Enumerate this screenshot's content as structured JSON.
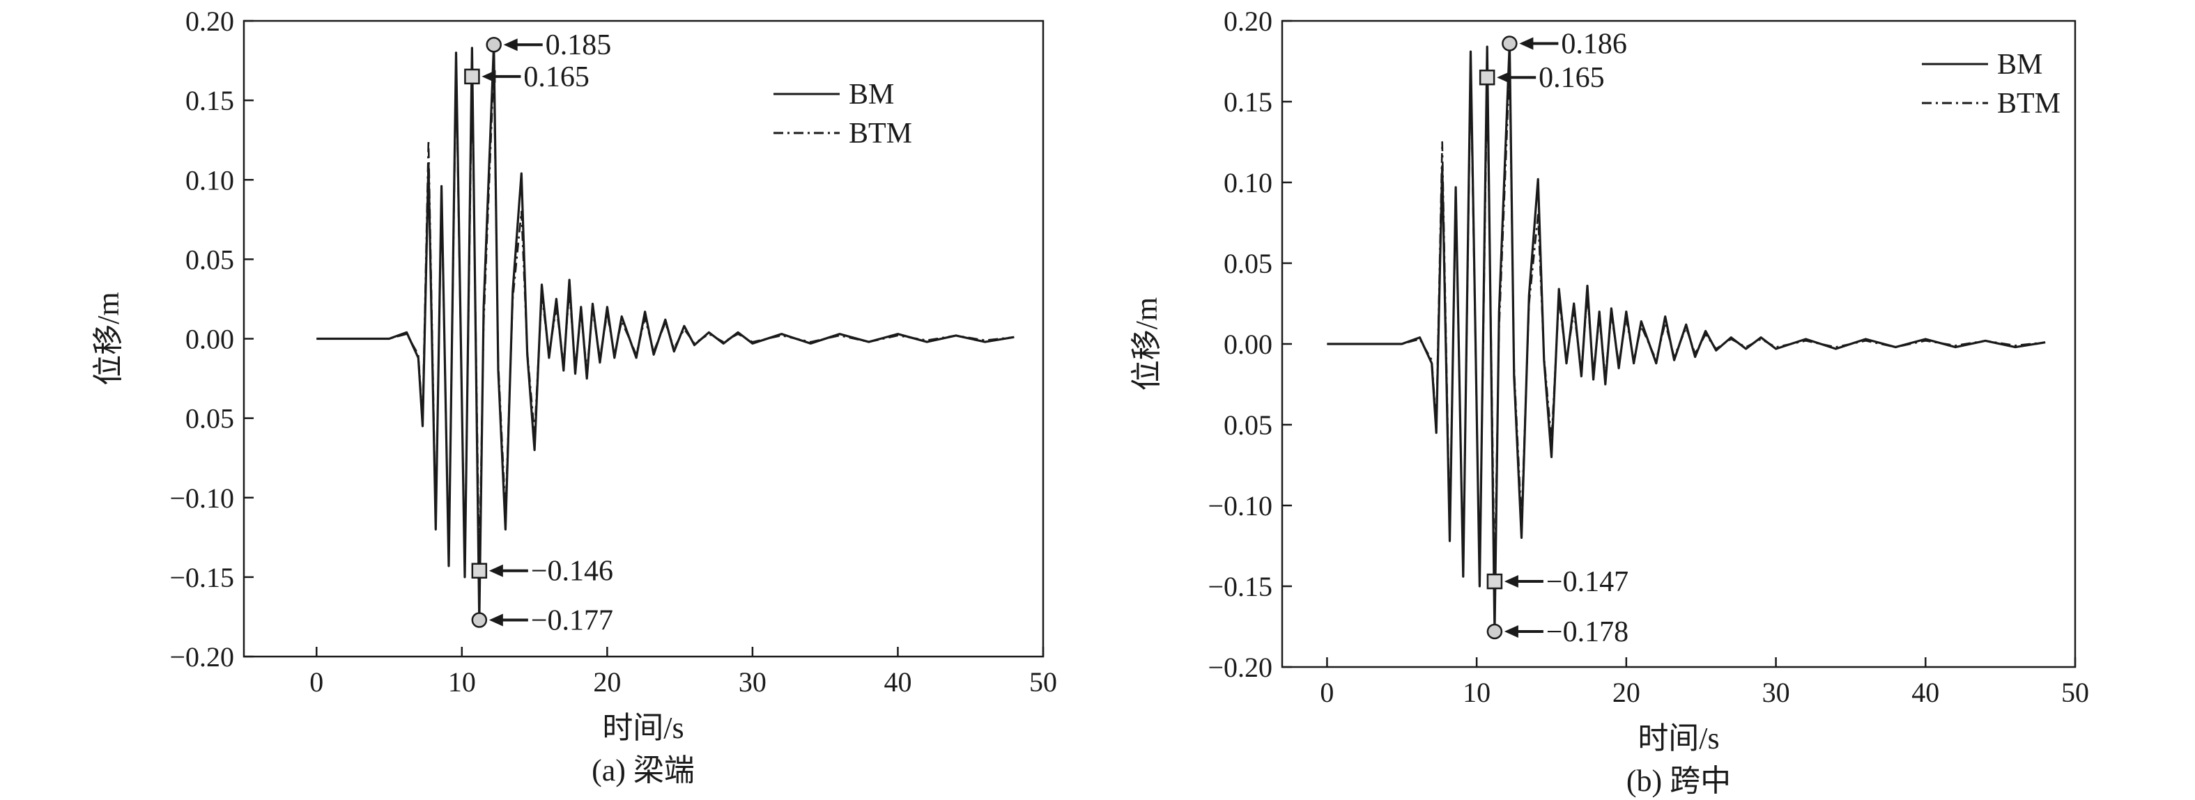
{
  "chart_data": [
    {
      "type": "line",
      "caption": "(a) 梁端",
      "xlabel": "时间/s",
      "ylabel": "位移/m",
      "xlim": [
        -5,
        50
      ],
      "ylim": [
        -0.2,
        0.2
      ],
      "xticks": [
        "0",
        "10",
        "20",
        "30",
        "40",
        "50"
      ],
      "yticks": [
        "0.20",
        "0.15",
        "0.10",
        "0.05",
        "0.00",
        "0.05",
        "−0.10",
        "−0.15",
        "−0.20"
      ],
      "legend": {
        "position": "top-right",
        "entries": [
          "BM",
          "BTM"
        ]
      },
      "series": [
        {
          "name": "BM",
          "style": "solid",
          "x": [
            0,
            5,
            6.2,
            7,
            7.3,
            7.7,
            8.2,
            8.6,
            9.1,
            9.6,
            10.2,
            10.7,
            11.2,
            11.5,
            12.2,
            12.5,
            13,
            13.5,
            14.1,
            14.5,
            15,
            15.5,
            16,
            16.5,
            17,
            17.4,
            17.8,
            18.2,
            18.6,
            19,
            19.5,
            20,
            20.5,
            21,
            22,
            22.6,
            23.2,
            24,
            24.6,
            25.3,
            26,
            27,
            28,
            29,
            30,
            32,
            34,
            36,
            38,
            40,
            42,
            44,
            46,
            48
          ],
          "y": [
            0,
            0,
            0.004,
            -0.012,
            -0.055,
            0.11,
            -0.12,
            0.096,
            -0.143,
            0.18,
            -0.15,
            0.183,
            -0.177,
            0.02,
            0.185,
            -0.02,
            -0.12,
            0.03,
            0.104,
            -0.01,
            -0.07,
            0.034,
            -0.012,
            0.025,
            -0.02,
            0.037,
            -0.022,
            0.02,
            -0.025,
            0.022,
            -0.015,
            0.02,
            -0.012,
            0.014,
            -0.012,
            0.017,
            -0.01,
            0.012,
            -0.008,
            0.008,
            -0.004,
            0.004,
            -0.003,
            0.004,
            -0.003,
            0.003,
            -0.003,
            0.003,
            -0.002,
            0.003,
            -0.002,
            0.002,
            -0.002,
            0.001
          ]
        },
        {
          "name": "BTM",
          "style": "dashdot",
          "x": [
            0,
            5,
            6.2,
            7,
            7.3,
            7.7,
            8.2,
            8.6,
            9.1,
            9.6,
            10.2,
            10.7,
            11.2,
            11.5,
            12.2,
            12.5,
            13,
            13.5,
            14.1,
            14.5,
            15,
            15.5,
            16,
            16.5,
            17,
            17.4,
            17.8,
            18.2,
            18.6,
            19,
            19.5,
            20,
            20.5,
            21,
            22,
            22.6,
            23.2,
            24,
            24.6,
            25.3,
            26,
            27,
            28,
            29,
            30,
            32,
            34,
            36,
            38,
            40,
            42,
            44,
            46,
            48
          ],
          "y": [
            0,
            0,
            0.003,
            -0.01,
            -0.05,
            0.125,
            -0.115,
            0.09,
            -0.14,
            0.17,
            -0.145,
            0.165,
            -0.146,
            0.01,
            0.172,
            -0.015,
            -0.11,
            0.025,
            0.08,
            -0.008,
            -0.06,
            0.028,
            -0.01,
            0.02,
            -0.016,
            0.03,
            -0.018,
            0.016,
            -0.02,
            0.018,
            -0.012,
            0.016,
            -0.01,
            0.011,
            -0.01,
            0.013,
            -0.008,
            0.01,
            -0.006,
            0.006,
            -0.003,
            0.003,
            -0.002,
            0.003,
            -0.002,
            0.002,
            -0.002,
            0.002,
            -0.002,
            0.002,
            -0.001,
            0.002,
            -0.001,
            0.001
          ]
        }
      ],
      "annotations": [
        {
          "label": "0.185",
          "x": 12.2,
          "y": 0.185,
          "marker": "circle"
        },
        {
          "label": "0.165",
          "x": 10.7,
          "y": 0.165,
          "marker": "square"
        },
        {
          "label": "−0.146",
          "x": 11.2,
          "y": -0.146,
          "marker": "square"
        },
        {
          "label": "−0.177",
          "x": 11.2,
          "y": -0.177,
          "marker": "circle"
        }
      ]
    },
    {
      "type": "line",
      "caption": "(b) 跨中",
      "xlabel": "时间/s",
      "ylabel": "位移/m",
      "xlim": [
        -3,
        50
      ],
      "ylim": [
        -0.2,
        0.2
      ],
      "xticks": [
        "0",
        "10",
        "20",
        "30",
        "40",
        "50"
      ],
      "yticks": [
        "0.20",
        "0.15",
        "0.10",
        "0.05",
        "0.00",
        "0.05",
        "−0.10",
        "−0.15",
        "−0.20"
      ],
      "legend": {
        "position": "top-right",
        "entries": [
          "BM",
          "BTM"
        ]
      },
      "series": [
        {
          "name": "BM",
          "style": "solid",
          "x": [
            0,
            5,
            6.2,
            7,
            7.3,
            7.7,
            8.2,
            8.6,
            9.1,
            9.6,
            10.2,
            10.7,
            11.2,
            11.5,
            12.2,
            12.5,
            13,
            13.5,
            14.1,
            14.5,
            15,
            15.5,
            16,
            16.5,
            17,
            17.4,
            17.8,
            18.2,
            18.6,
            19,
            19.5,
            20,
            20.5,
            21,
            22,
            22.6,
            23.2,
            24,
            24.6,
            25.3,
            26,
            27,
            28,
            29,
            30,
            32,
            34,
            36,
            38,
            40,
            42,
            44,
            46,
            48
          ],
          "y": [
            0,
            0,
            0.004,
            -0.012,
            -0.055,
            0.11,
            -0.122,
            0.097,
            -0.144,
            0.181,
            -0.15,
            0.184,
            -0.178,
            0.02,
            0.186,
            -0.02,
            -0.12,
            0.03,
            0.102,
            -0.01,
            -0.07,
            0.034,
            -0.012,
            0.025,
            -0.02,
            0.036,
            -0.022,
            0.02,
            -0.025,
            0.022,
            -0.015,
            0.02,
            -0.012,
            0.014,
            -0.012,
            0.017,
            -0.01,
            0.012,
            -0.008,
            0.008,
            -0.004,
            0.004,
            -0.003,
            0.004,
            -0.003,
            0.003,
            -0.003,
            0.003,
            -0.002,
            0.003,
            -0.002,
            0.002,
            -0.002,
            0.001
          ]
        },
        {
          "name": "BTM",
          "style": "dashdot",
          "x": [
            0,
            5,
            6.2,
            7,
            7.3,
            7.7,
            8.2,
            8.6,
            9.1,
            9.6,
            10.2,
            10.7,
            11.2,
            11.5,
            12.2,
            12.5,
            13,
            13.5,
            14.1,
            14.5,
            15,
            15.5,
            16,
            16.5,
            17,
            17.4,
            17.8,
            18.2,
            18.6,
            19,
            19.5,
            20,
            20.5,
            21,
            22,
            22.6,
            23.2,
            24,
            24.6,
            25.3,
            26,
            27,
            28,
            29,
            30,
            32,
            34,
            36,
            38,
            40,
            42,
            44,
            46,
            48
          ],
          "y": [
            0,
            0,
            0.003,
            -0.01,
            -0.05,
            0.125,
            -0.116,
            0.091,
            -0.14,
            0.17,
            -0.145,
            0.165,
            -0.147,
            0.01,
            0.172,
            -0.015,
            -0.11,
            0.025,
            0.08,
            -0.008,
            -0.06,
            0.028,
            -0.01,
            0.02,
            -0.016,
            0.03,
            -0.018,
            0.016,
            -0.02,
            0.018,
            -0.012,
            0.016,
            -0.01,
            0.011,
            -0.01,
            0.013,
            -0.008,
            0.01,
            -0.006,
            0.006,
            -0.003,
            0.003,
            -0.002,
            0.003,
            -0.002,
            0.002,
            -0.002,
            0.002,
            -0.002,
            0.002,
            -0.001,
            0.002,
            -0.001,
            0.001
          ]
        }
      ],
      "annotations": [
        {
          "label": "0.186",
          "x": 12.2,
          "y": 0.186,
          "marker": "circle"
        },
        {
          "label": "0.165",
          "x": 10.7,
          "y": 0.165,
          "marker": "square"
        },
        {
          "label": "−0.147",
          "x": 11.2,
          "y": -0.147,
          "marker": "square"
        },
        {
          "label": "−0.178",
          "x": 11.2,
          "y": -0.178,
          "marker": "circle"
        }
      ]
    }
  ]
}
